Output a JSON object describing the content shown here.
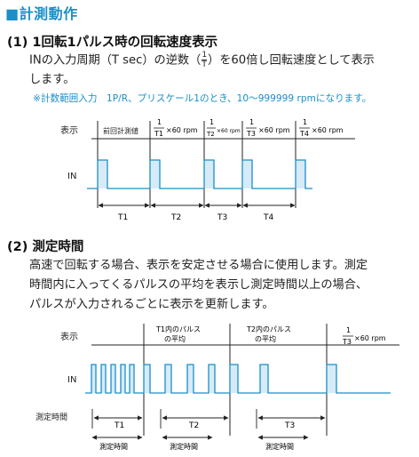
{
  "title_mark": "■",
  "title": "計測動作",
  "s1": {
    "heading": "(1) 1回転1パルス時の回転速度表示",
    "line1_pre": "INの入力周期（T sec）の逆数（",
    "frac_num": "1",
    "frac_den": "T",
    "line1_post": "）を60倍し回転速度として表示",
    "line2": "します。",
    "note": "※計数範囲入力　1P/R、プリスケール1のとき、10～999999 rpmになります。",
    "display_label": "表示",
    "in_label": "IN",
    "cells": [
      {
        "text": "前回計測値"
      },
      {
        "num": "1",
        "den": "T1",
        "suffix": "×60 rpm"
      },
      {
        "num": "1",
        "den": "T2",
        "suffix": "×60 rpm"
      },
      {
        "num": "1",
        "den": "T3",
        "suffix": "×60 rpm"
      },
      {
        "num": "1",
        "den": "T4",
        "suffix": "×60 rpm"
      }
    ],
    "periods": [
      "T1",
      "T2",
      "T3",
      "T4"
    ]
  },
  "s2": {
    "heading": "(2) 測定時間",
    "line1": "高速で回転する場合、表示を安定させる場合に使用します。測定",
    "line2": "時間内に入ってくるパルスの平均を表示し測定時間以上の場合、",
    "line3": "パルスが入力されるごとに表示を更新します。",
    "display_label": "表示",
    "in_label": "IN",
    "meas_label": "測定時間",
    "cells": [
      {
        "line1": "T1内のパルス",
        "line2": "の平均"
      },
      {
        "line1": "T2内のパルス",
        "line2": "の平均"
      },
      {
        "num": "1",
        "den": "T3",
        "suffix": "×60 rpm"
      }
    ],
    "periods": [
      "T1",
      "T2",
      "T3"
    ],
    "meas_caption": "測定時間"
  },
  "colors": {
    "accent": "#1a8fc8",
    "pulse_fill": "#d7ebf7",
    "line": "#222222"
  }
}
